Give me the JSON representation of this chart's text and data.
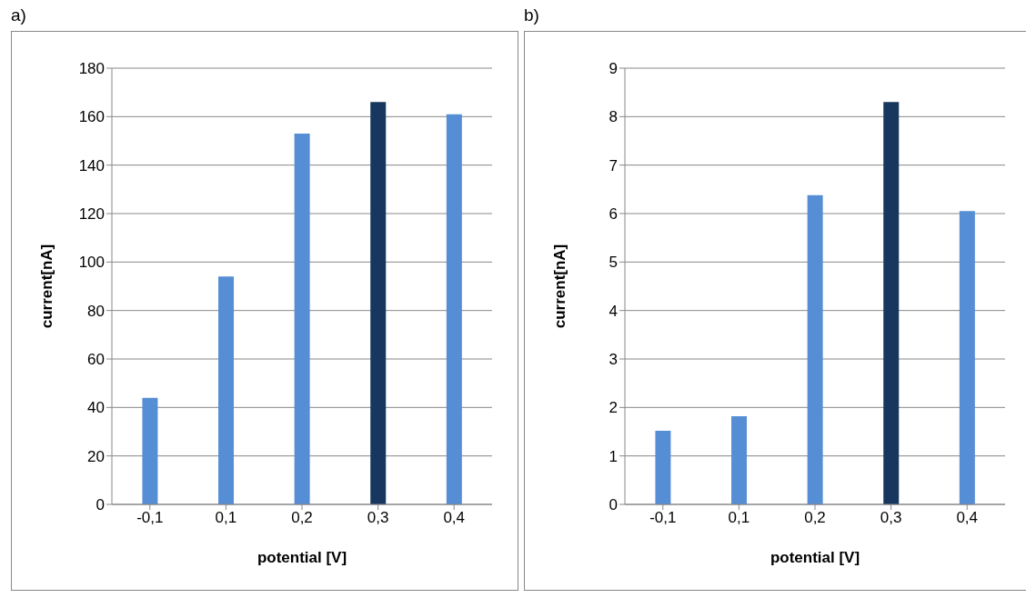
{
  "chart_data": [
    {
      "type": "bar",
      "title": "a)",
      "xlabel": "potential [V]",
      "ylabel": "current[nA]",
      "categories": [
        "-0,1",
        "0,1",
        "0,2",
        "0,3",
        "0,4"
      ],
      "values": [
        44,
        94,
        153,
        166,
        161
      ],
      "colors": [
        "#558ed5",
        "#558ed5",
        "#558ed5",
        "#17375e",
        "#558ed5"
      ],
      "ylim": [
        0,
        180
      ],
      "yticks": [
        0,
        20,
        40,
        60,
        80,
        100,
        120,
        140,
        160,
        180
      ],
      "grid": "y"
    },
    {
      "type": "bar",
      "title": "b)",
      "xlabel": "potential [V]",
      "ylabel": "current[nA]",
      "categories": [
        "-0,1",
        "0,1",
        "0,2",
        "0,3",
        "0,4"
      ],
      "values": [
        1.52,
        1.82,
        6.38,
        8.3,
        6.05
      ],
      "colors": [
        "#558ed5",
        "#558ed5",
        "#558ed5",
        "#17375e",
        "#558ed5"
      ],
      "ylim": [
        0,
        9
      ],
      "yticks": [
        0,
        1,
        2,
        3,
        4,
        5,
        6,
        7,
        8,
        9
      ],
      "grid": "y"
    }
  ]
}
